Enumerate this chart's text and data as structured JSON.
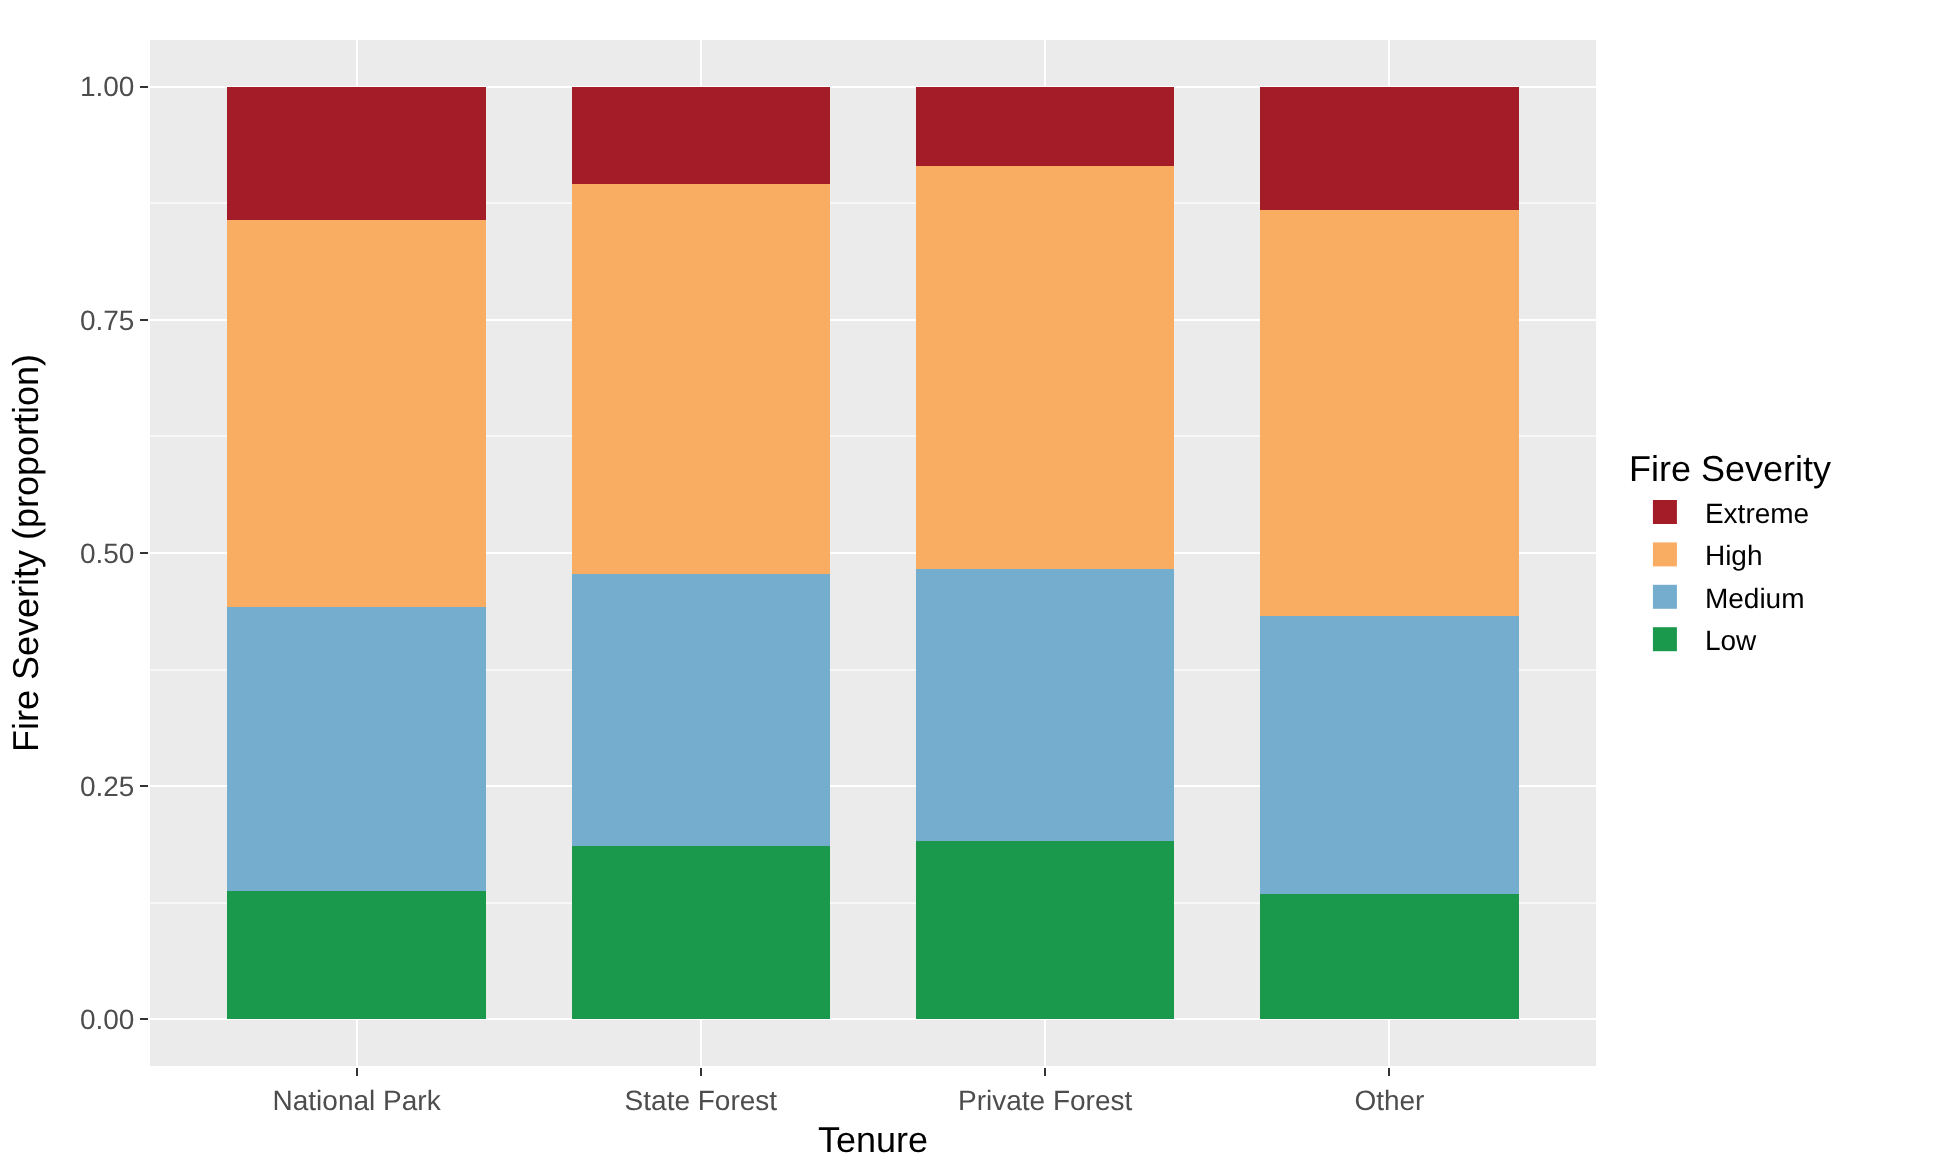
{
  "chart_data": {
    "type": "bar",
    "stacked": true,
    "xlabel": "Tenure",
    "ylabel": "Fire Severity (proportion)",
    "legend_title": "Fire Severity",
    "legend": "right",
    "grid": true,
    "categories": [
      "National Park",
      "State Forest",
      "Private Forest",
      "Other"
    ],
    "series": [
      {
        "name": "Low",
        "color": "#1a994d",
        "values": [
          0.138,
          0.186,
          0.191,
          0.134
        ]
      },
      {
        "name": "Medium",
        "color": "#75adcf",
        "values": [
          0.304,
          0.292,
          0.292,
          0.298
        ]
      },
      {
        "name": "High",
        "color": "#f9ad62",
        "values": [
          0.415,
          0.418,
          0.432,
          0.436
        ]
      },
      {
        "name": "Extreme",
        "color": "#a51c29",
        "values": [
          0.143,
          0.104,
          0.085,
          0.132
        ]
      }
    ],
    "ylim": [
      -0.05,
      1.05
    ],
    "yticks": [
      {
        "value": 0,
        "label": "0.00"
      },
      {
        "value": 0.25,
        "label": "0.25"
      },
      {
        "value": 0.5,
        "label": "0.50"
      },
      {
        "value": 0.75,
        "label": "0.75"
      },
      {
        "value": 1,
        "label": "1.00"
      }
    ]
  }
}
